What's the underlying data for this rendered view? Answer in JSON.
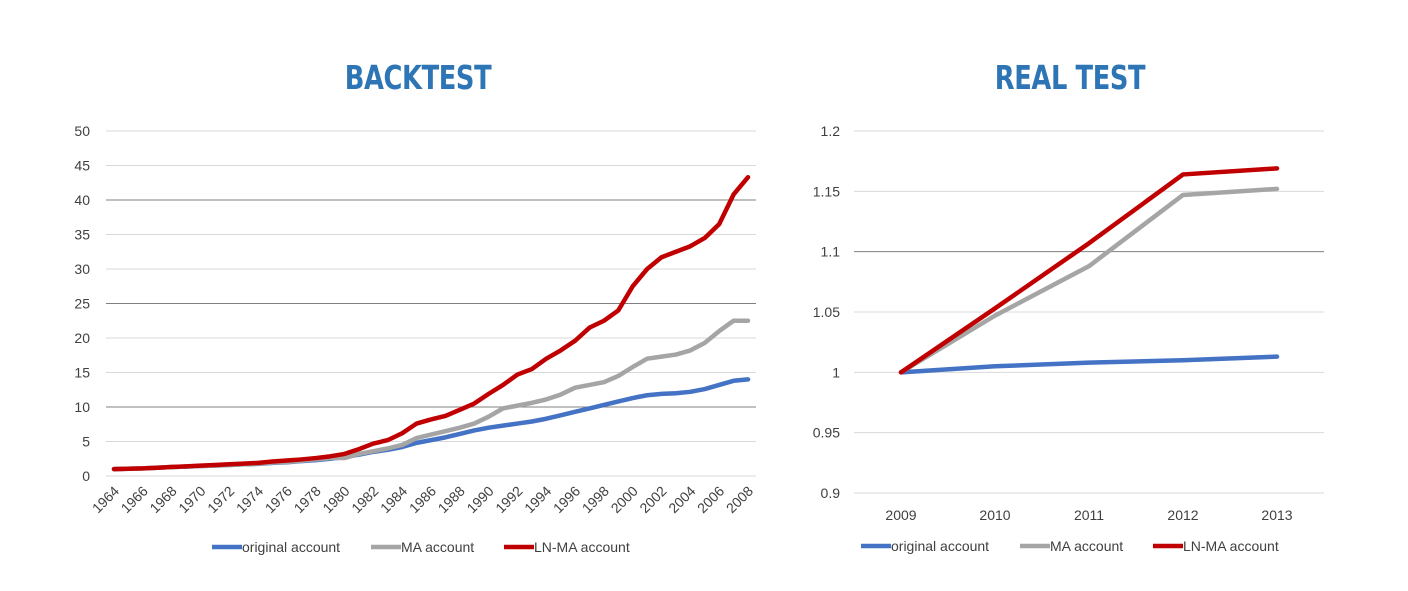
{
  "charts": {
    "backtest_title": "BACKTEST",
    "realtest_title": "REAL TEST"
  },
  "legend": {
    "original": "original account",
    "ma": "MA account",
    "lnma": "LN-MA account"
  },
  "colors": {
    "original": "#4472c4",
    "ma": "#a5a5a5",
    "lnma": "#c00000",
    "title": "#2e75b6",
    "grid": "#d9d9d9"
  },
  "chart_data": [
    {
      "type": "line",
      "title": "BACKTEST",
      "xlabel": "",
      "ylabel": "",
      "ylim": [
        0,
        50
      ],
      "yticks": [
        "0",
        "5",
        "10",
        "15",
        "20",
        "25",
        "30",
        "35",
        "40",
        "45",
        "50"
      ],
      "x_tick_labels": [
        "1964",
        "1966",
        "1968",
        "1970",
        "1972",
        "1974",
        "1976",
        "1978",
        "1980",
        "1982",
        "1984",
        "1986",
        "1988",
        "1990",
        "1992",
        "1994",
        "1996",
        "1998",
        "2000",
        "2002",
        "2004",
        "2006",
        "2008"
      ],
      "x": [
        1964,
        1965,
        1966,
        1967,
        1968,
        1969,
        1970,
        1971,
        1972,
        1973,
        1974,
        1975,
        1976,
        1977,
        1978,
        1979,
        1980,
        1981,
        1982,
        1983,
        1984,
        1985,
        1986,
        1987,
        1988,
        1989,
        1990,
        1991,
        1992,
        1993,
        1994,
        1995,
        1996,
        1997,
        1998,
        1999,
        2000,
        2001,
        2002,
        2003,
        2004,
        2005,
        2006,
        2007,
        2008
      ],
      "series": [
        {
          "name": "original account",
          "values": [
            1.0,
            1.05,
            1.1,
            1.2,
            1.3,
            1.35,
            1.45,
            1.5,
            1.6,
            1.7,
            1.75,
            1.9,
            2.0,
            2.15,
            2.3,
            2.5,
            2.75,
            3.1,
            3.5,
            3.8,
            4.2,
            4.8,
            5.2,
            5.6,
            6.1,
            6.6,
            7.0,
            7.3,
            7.6,
            7.9,
            8.3,
            8.8,
            9.3,
            9.8,
            10.3,
            10.8,
            11.3,
            11.7,
            11.9,
            12.0,
            12.2,
            12.6,
            13.2,
            13.8,
            14.0
          ]
        },
        {
          "name": "MA account",
          "values": [
            1.0,
            1.05,
            1.1,
            1.2,
            1.3,
            1.35,
            1.45,
            1.5,
            1.6,
            1.7,
            1.8,
            1.95,
            2.05,
            2.2,
            2.4,
            2.6,
            2.6,
            3.2,
            3.6,
            4.0,
            4.5,
            5.5,
            6.0,
            6.5,
            7.0,
            7.6,
            8.6,
            9.8,
            10.2,
            10.6,
            11.1,
            11.8,
            12.8,
            13.2,
            13.6,
            14.5,
            15.8,
            17.0,
            17.3,
            17.6,
            18.2,
            19.3,
            21.0,
            22.5,
            22.5
          ]
        },
        {
          "name": "LN-MA account",
          "values": [
            1.0,
            1.05,
            1.1,
            1.2,
            1.3,
            1.4,
            1.5,
            1.6,
            1.7,
            1.8,
            1.9,
            2.1,
            2.25,
            2.4,
            2.6,
            2.85,
            3.2,
            3.9,
            4.7,
            5.2,
            6.2,
            7.6,
            8.2,
            8.7,
            9.6,
            10.5,
            11.9,
            13.2,
            14.7,
            15.5,
            17.0,
            18.2,
            19.6,
            21.5,
            22.5,
            24.0,
            27.5,
            30.0,
            31.7,
            32.5,
            33.3,
            34.5,
            36.5,
            40.8,
            43.3
          ]
        }
      ]
    },
    {
      "type": "line",
      "title": "REAL TEST",
      "xlabel": "",
      "ylabel": "",
      "ylim": [
        0.9,
        1.2
      ],
      "yticks": [
        "0.9",
        "0.95",
        "1",
        "1.05",
        "1.1",
        "1.15",
        "1.2"
      ],
      "categories": [
        "2009",
        "2010",
        "2011",
        "2012",
        "2013"
      ],
      "series": [
        {
          "name": "original account",
          "values": [
            1.0,
            1.005,
            1.008,
            1.01,
            1.013
          ]
        },
        {
          "name": "MA account",
          "values": [
            1.0,
            1.047,
            1.088,
            1.147,
            1.152
          ]
        },
        {
          "name": "LN-MA account",
          "values": [
            1.0,
            1.053,
            1.107,
            1.164,
            1.169
          ]
        }
      ]
    }
  ]
}
